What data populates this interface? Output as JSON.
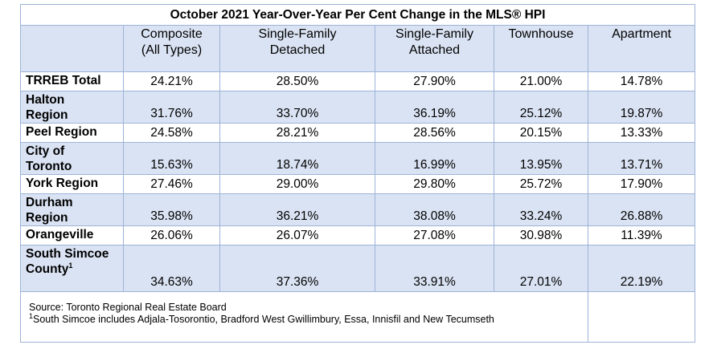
{
  "title": "October 2021 Year-Over-Year Per Cent Change in the MLS® HPI",
  "columns": [
    {
      "line1": "Composite",
      "line2": "(All Types)"
    },
    {
      "line1": "Single-Family",
      "line2": "Detached"
    },
    {
      "line1": "Single-Family",
      "line2": "Attached"
    },
    {
      "line1": "Townhouse",
      "line2": ""
    },
    {
      "line1": "Apartment",
      "line2": ""
    }
  ],
  "rows": [
    {
      "line1": "TRREB Total",
      "line2": "",
      "sup": "",
      "values": [
        "24.21%",
        "28.50%",
        "27.90%",
        "21.00%",
        "14.78%"
      ]
    },
    {
      "line1": "Halton",
      "line2": "Region",
      "sup": "",
      "values": [
        "31.76%",
        "33.70%",
        "36.19%",
        "25.12%",
        "19.87%"
      ]
    },
    {
      "line1": "Peel Region",
      "line2": "",
      "sup": "",
      "values": [
        "24.58%",
        "28.21%",
        "28.56%",
        "20.15%",
        "13.33%"
      ]
    },
    {
      "line1": "City of",
      "line2": "Toronto",
      "sup": "",
      "values": [
        "15.63%",
        "18.74%",
        "16.99%",
        "13.95%",
        "13.71%"
      ]
    },
    {
      "line1": "York Region",
      "line2": "",
      "sup": "",
      "values": [
        "27.46%",
        "29.00%",
        "29.80%",
        "25.72%",
        "17.90%"
      ]
    },
    {
      "line1": "Durham",
      "line2": "Region",
      "sup": "",
      "values": [
        "35.98%",
        "36.21%",
        "38.08%",
        "33.24%",
        "26.88%"
      ]
    },
    {
      "line1": "Orangeville",
      "line2": "",
      "sup": "",
      "values": [
        "26.06%",
        "26.07%",
        "27.08%",
        "30.98%",
        "11.39%"
      ]
    },
    {
      "line1": "South Simcoe",
      "line2": "County",
      "sup": "1",
      "values": [
        "34.63%",
        "37.36%",
        "33.91%",
        "27.01%",
        "22.19%"
      ]
    }
  ],
  "footnote": {
    "source": "Source: Toronto Regional Real Estate Board",
    "sup": "1",
    "note": "South Simcoe includes Adjala-Tosorontio, Bradford West Gwillimbury, Essa, Innisfil and New Tecumseth"
  }
}
